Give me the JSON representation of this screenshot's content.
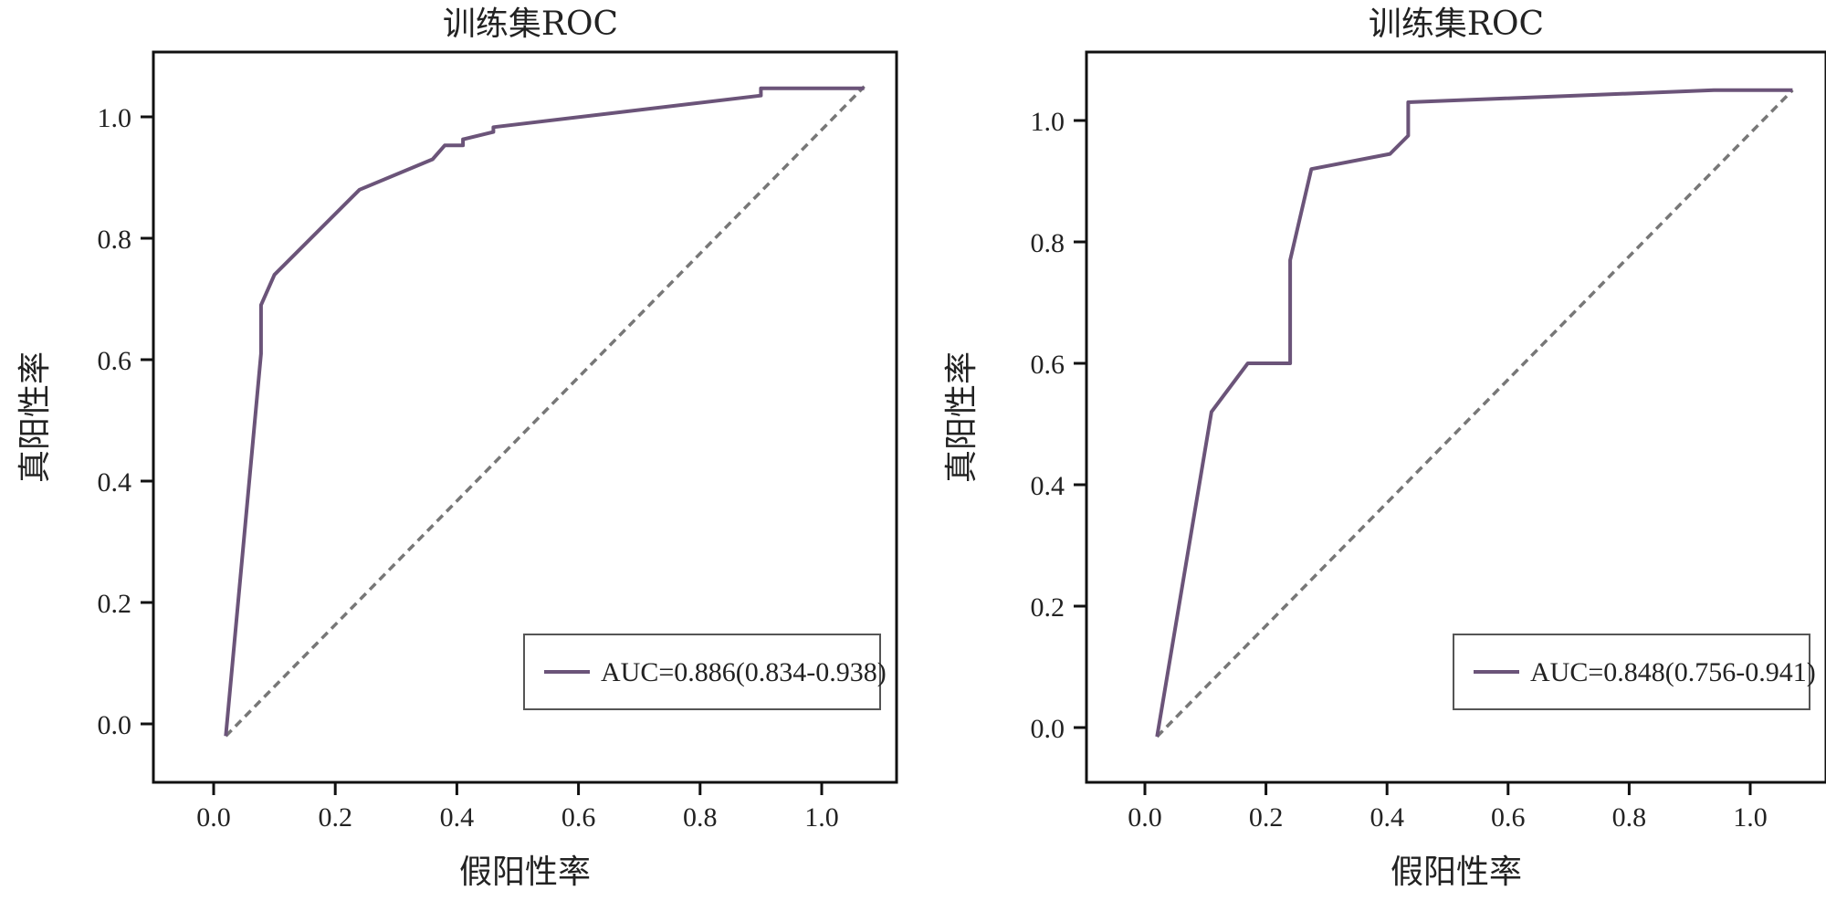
{
  "chart_data": [
    {
      "type": "line",
      "title": "训练集ROC",
      "xlabel": "假阳性率",
      "ylabel": "真阳性率",
      "xlim": [
        -0.1,
        1.1
      ],
      "ylim": [
        -0.1,
        1.1
      ],
      "xticks": [
        "0.0",
        "0.2",
        "0.4",
        "0.6",
        "0.8",
        "1.0"
      ],
      "yticks": [
        "0.0",
        "0.2",
        "0.4",
        "0.6",
        "0.8",
        "1.0"
      ],
      "legend_position": "bottom-right",
      "grid": false,
      "series": [
        {
          "name": "AUC=0.886(0.834-0.938)",
          "color": "#6b5479",
          "x": [
            0.02,
            0.078,
            0.078,
            0.1,
            0.24,
            0.36,
            0.38,
            0.41,
            0.41,
            0.46,
            0.46,
            0.9,
            0.9,
            1.07
          ],
          "y": [
            -0.02,
            0.61,
            0.69,
            0.74,
            0.88,
            0.93,
            0.953,
            0.953,
            0.963,
            0.975,
            0.983,
            1.035,
            1.047,
            1.047
          ]
        }
      ],
      "reference_line": {
        "x": [
          0.02,
          1.07
        ],
        "y": [
          -0.02,
          1.05
        ],
        "color": "#777777",
        "style": "dashed"
      }
    },
    {
      "type": "line",
      "title": "训练集ROC",
      "xlabel": "假阳性率",
      "ylabel": "真阳性率",
      "xlim": [
        -0.1,
        1.1
      ],
      "ylim": [
        -0.1,
        1.1
      ],
      "xticks": [
        "0.0",
        "0.2",
        "0.4",
        "0.6",
        "0.8",
        "1.0"
      ],
      "yticks": [
        "0.0",
        "0.2",
        "0.4",
        "0.6",
        "0.8",
        "1.0"
      ],
      "legend_position": "bottom-right",
      "grid": false,
      "series": [
        {
          "name": "AUC=0.848(0.756-0.941)",
          "color": "#6b5479",
          "x": [
            0.02,
            0.11,
            0.17,
            0.24,
            0.24,
            0.275,
            0.405,
            0.435,
            0.435,
            0.94,
            1.07
          ],
          "y": [
            -0.015,
            0.52,
            0.6,
            0.6,
            0.77,
            0.92,
            0.945,
            0.975,
            1.03,
            1.05,
            1.05
          ]
        }
      ],
      "reference_line": {
        "x": [
          0.02,
          1.07
        ],
        "y": [
          -0.015,
          1.05
        ],
        "color": "#777777",
        "style": "dashed"
      }
    }
  ]
}
